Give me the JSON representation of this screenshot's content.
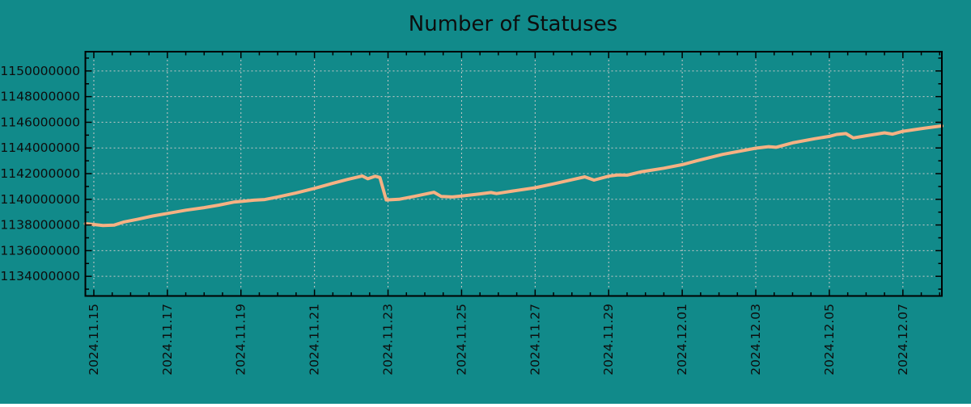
{
  "title": "Number of Statuses",
  "colors": {
    "background": "#118a8a",
    "line": "#f6b183",
    "grid": "#c8c8c8",
    "axis": "#000000",
    "text": "#0d0d0d"
  },
  "chart_data": {
    "type": "line",
    "title": "Number of Statuses",
    "xlabel": "",
    "ylabel": "",
    "legend": "none",
    "grid": true,
    "x_unit": "days since first x tick (2024.11.15)",
    "xlim": [
      -0.23,
      23.06
    ],
    "ylim": [
      1132470000,
      1151500000
    ],
    "x_major_ticks": [
      0,
      2,
      4,
      6,
      8,
      10,
      12,
      14,
      16,
      18,
      20,
      22
    ],
    "x_tick_labels": [
      "2024.11.15",
      "2024.11.17",
      "2024.11.19",
      "2024.11.21",
      "2024.11.23",
      "2024.11.25",
      "2024.11.27",
      "2024.11.29",
      "2024.12.01",
      "2024.12.03",
      "2024.12.05",
      "2024.12.07"
    ],
    "x_minor_step": 0.5,
    "y_major_ticks": [
      1134000000,
      1136000000,
      1138000000,
      1140000000,
      1142000000,
      1144000000,
      1146000000,
      1148000000,
      1150000000
    ],
    "y_tick_labels": [
      "1134000000",
      "1136000000",
      "1138000000",
      "1140000000",
      "1142000000",
      "1144000000",
      "1146000000",
      "1148000000",
      "1150000000"
    ],
    "y_minor_step": 1000000,
    "points": [
      [
        -0.23,
        1138100000
      ],
      [
        0.0,
        1138040000
      ],
      [
        0.25,
        1137960000
      ],
      [
        0.55,
        1137990000
      ],
      [
        0.8,
        1138220000
      ],
      [
        1.2,
        1138450000
      ],
      [
        1.6,
        1138700000
      ],
      [
        2.0,
        1138900000
      ],
      [
        2.5,
        1139150000
      ],
      [
        3.0,
        1139350000
      ],
      [
        3.4,
        1139550000
      ],
      [
        3.8,
        1139780000
      ],
      [
        4.05,
        1139850000
      ],
      [
        4.35,
        1139930000
      ],
      [
        4.65,
        1139980000
      ],
      [
        5.0,
        1140180000
      ],
      [
        5.5,
        1140500000
      ],
      [
        6.0,
        1140850000
      ],
      [
        6.5,
        1141250000
      ],
      [
        6.9,
        1141550000
      ],
      [
        7.3,
        1141820000
      ],
      [
        7.45,
        1141600000
      ],
      [
        7.65,
        1141800000
      ],
      [
        7.78,
        1141700000
      ],
      [
        7.95,
        1139950000
      ],
      [
        8.3,
        1140000000
      ],
      [
        8.7,
        1140220000
      ],
      [
        9.25,
        1140550000
      ],
      [
        9.45,
        1140220000
      ],
      [
        9.75,
        1140180000
      ],
      [
        10.0,
        1140250000
      ],
      [
        10.5,
        1140420000
      ],
      [
        10.8,
        1140530000
      ],
      [
        10.95,
        1140450000
      ],
      [
        11.4,
        1140650000
      ],
      [
        12.0,
        1140900000
      ],
      [
        12.5,
        1141200000
      ],
      [
        13.0,
        1141520000
      ],
      [
        13.35,
        1141750000
      ],
      [
        13.6,
        1141500000
      ],
      [
        14.0,
        1141800000
      ],
      [
        14.25,
        1141900000
      ],
      [
        14.5,
        1141880000
      ],
      [
        14.9,
        1142150000
      ],
      [
        15.5,
        1142420000
      ],
      [
        16.0,
        1142700000
      ],
      [
        16.4,
        1143000000
      ],
      [
        17.1,
        1143500000
      ],
      [
        18.0,
        1143980000
      ],
      [
        18.35,
        1144100000
      ],
      [
        18.55,
        1144050000
      ],
      [
        19.0,
        1144400000
      ],
      [
        19.6,
        1144720000
      ],
      [
        20.0,
        1144900000
      ],
      [
        20.2,
        1145050000
      ],
      [
        20.45,
        1145120000
      ],
      [
        20.65,
        1144780000
      ],
      [
        21.0,
        1144950000
      ],
      [
        21.5,
        1145180000
      ],
      [
        21.72,
        1145080000
      ],
      [
        22.0,
        1145300000
      ],
      [
        22.6,
        1145550000
      ],
      [
        23.06,
        1145720000
      ]
    ]
  }
}
